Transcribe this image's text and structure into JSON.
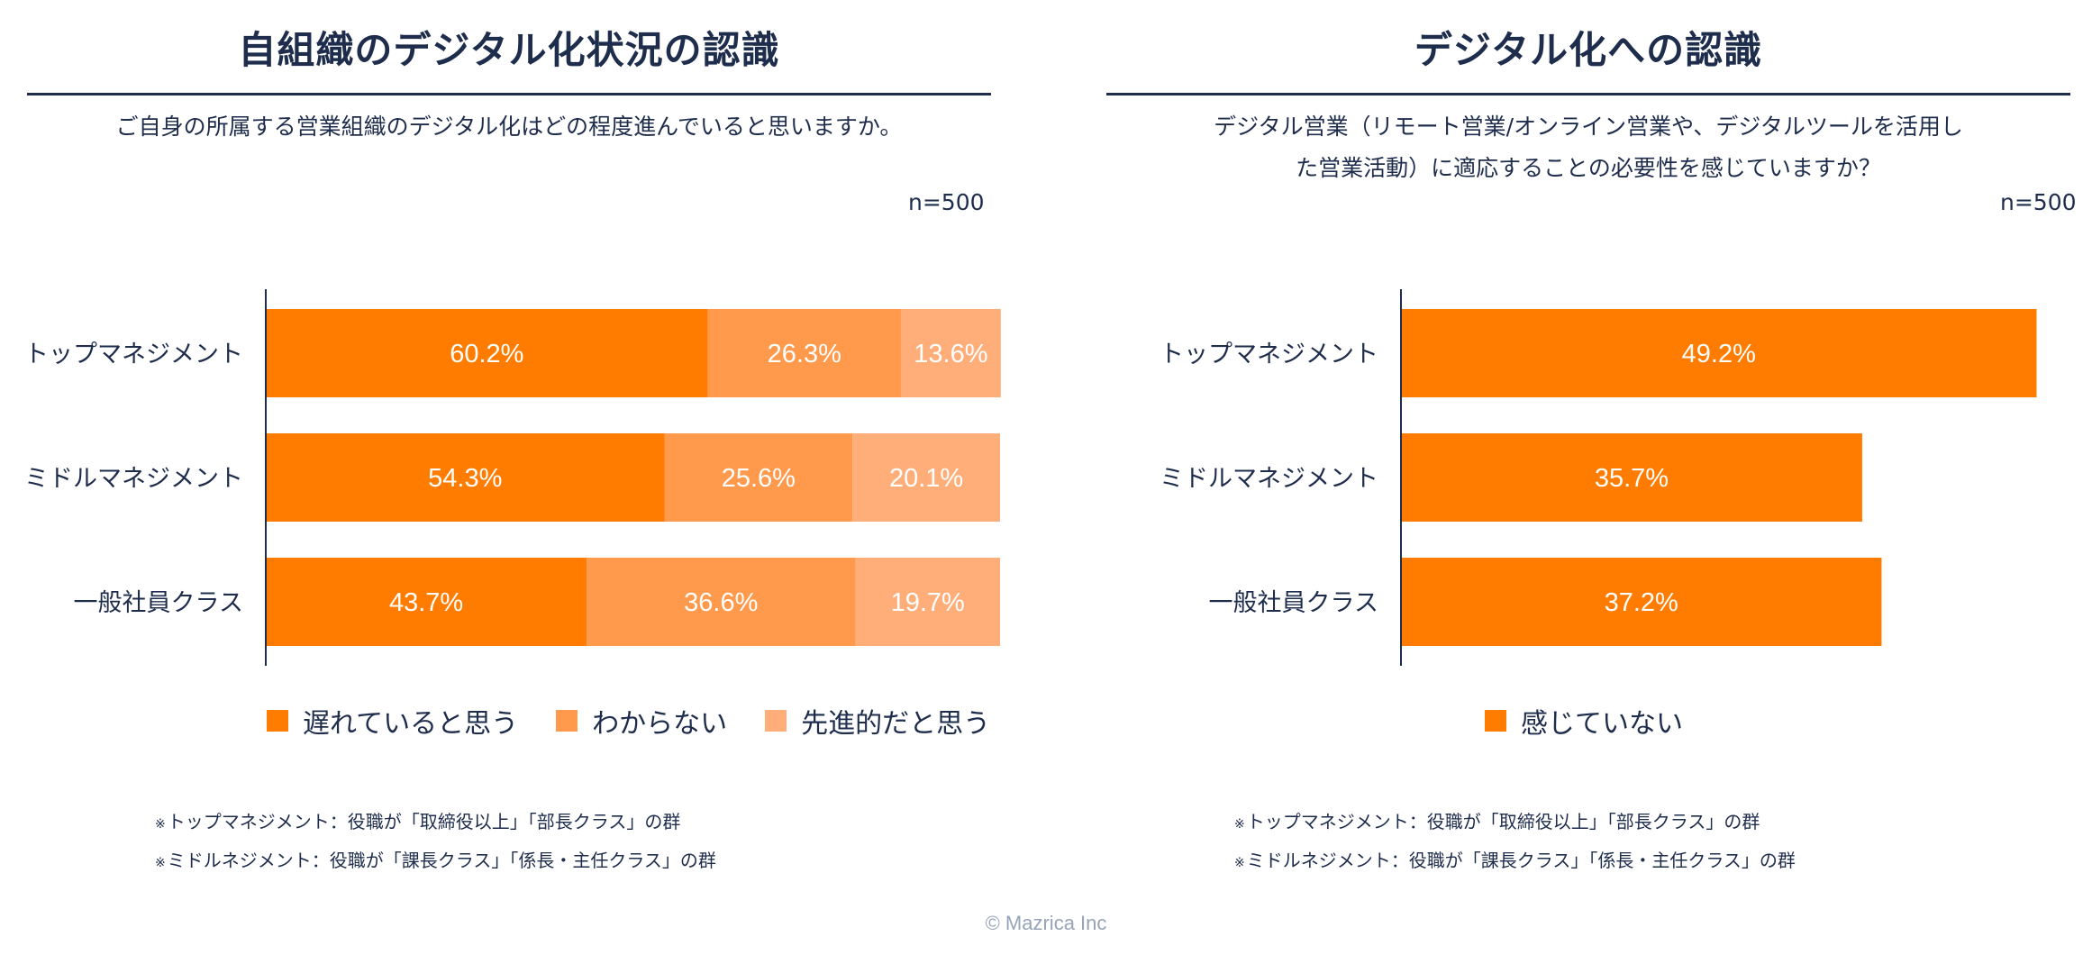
{
  "colors": {
    "navy": "#1f2d4d",
    "orange_dark": "#ff7c00",
    "orange_mid": "#ff9a4c",
    "orange_light": "#ffae7a",
    "copyright_gray": "#97a3b6"
  },
  "panels": [
    {
      "title": "自組織のデジタル化状況の認識",
      "question_lines": [
        "ご自身の所属する営業組織のデジタル化はどの程度進んでいると思いますか。"
      ],
      "n": "n=500",
      "notes": [
        "トップマネジメント：役職が「取締役以上」「部長クラス」の群",
        "ミドルネジメント：役職が「課長クラス」「係長・主任クラス」の群"
      ]
    },
    {
      "title": "デジタル化への認識",
      "question_lines": [
        "デジタル営業（リモート営業/オンライン営業や、デジタルツールを活用し",
        "た営業活動）に適応することの必要性を感じていますか？"
      ],
      "n": "n=500",
      "notes": [
        "トップマネジメント：役職が「取締役以上」「部長クラス」の群",
        "ミドルネジメント：役職が「課長クラス」「係長・主任クラス」の群"
      ]
    }
  ],
  "note_mark": "※",
  "chart_data": [
    {
      "type": "bar",
      "orientation": "horizontal",
      "stacked": true,
      "title": "自組織のデジタル化状況の認識",
      "categories": [
        "トップマネジメント",
        "ミドルマネジメント",
        "一般社員クラス"
      ],
      "series": [
        {
          "name": "遅れていると思う",
          "values": [
            60.2,
            54.3,
            43.7
          ],
          "labels": [
            "60.2%",
            "54.3%",
            "43.7%"
          ],
          "color": "#ff7c00"
        },
        {
          "name": "わからない",
          "values": [
            26.3,
            25.6,
            36.6
          ],
          "labels": [
            "26.3%",
            "25.6%",
            "36.6%"
          ],
          "color": "#ff9a4c"
        },
        {
          "name": "先進的だと思う",
          "values": [
            13.6,
            20.1,
            19.7
          ],
          "labels": [
            "13.6%",
            "20.1%",
            "19.7%"
          ],
          "color": "#ffae7a"
        }
      ],
      "xlim": [
        0,
        100
      ],
      "legend": "bottom",
      "grid": false
    },
    {
      "type": "bar",
      "orientation": "horizontal",
      "stacked": false,
      "title": "デジタル化への認識",
      "categories": [
        "トップマネジメント",
        "ミドルマネジメント",
        "一般社員クラス"
      ],
      "series": [
        {
          "name": "感じていない",
          "values": [
            49.2,
            35.7,
            37.2
          ],
          "labels": [
            "49.2%",
            "35.7%",
            "37.2%"
          ],
          "color": "#ff7c00"
        }
      ],
      "xlim": [
        0,
        50
      ],
      "legend": "bottom",
      "grid": false
    }
  ],
  "copyright": "© Mazrica Inc"
}
